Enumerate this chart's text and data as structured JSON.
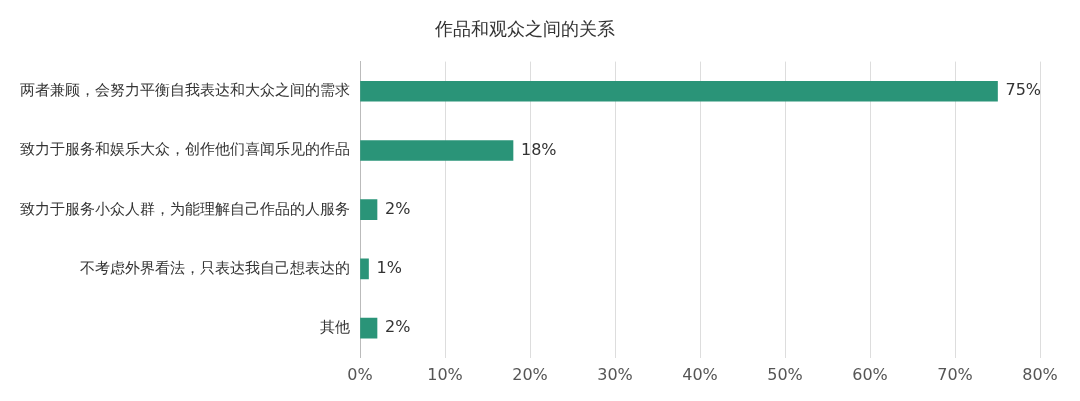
{
  "chart_data": {
    "type": "bar",
    "orientation": "horizontal",
    "title": "作品和观众之间的关系",
    "categories": [
      "两者兼顾，会努力平衡自我表达和大众之间的需求",
      "致力于服务和娱乐大众，创作他们喜闻乐见的作品",
      "致力于服务小众人群，为能理解自己作品的人服务",
      "不考虑外界看法，只表达我自己想表达的",
      "其他"
    ],
    "values": [
      75,
      18,
      2,
      1,
      2
    ],
    "value_labels": [
      "75%",
      "18%",
      "2%",
      "1%",
      "2%"
    ],
    "color": "#2a9478",
    "xlim": [
      0,
      80
    ],
    "xticks": [
      {
        "value": 0,
        "label": "0%"
      },
      {
        "value": 10,
        "label": "10%"
      },
      {
        "value": 20,
        "label": "20%"
      },
      {
        "value": 30,
        "label": "30%"
      },
      {
        "value": 40,
        "label": "40%"
      },
      {
        "value": 50,
        "label": "50%"
      },
      {
        "value": 60,
        "label": "60%"
      },
      {
        "value": 70,
        "label": "70%"
      },
      {
        "value": 80,
        "label": "80%"
      }
    ],
    "grid": "x",
    "legend": false
  }
}
